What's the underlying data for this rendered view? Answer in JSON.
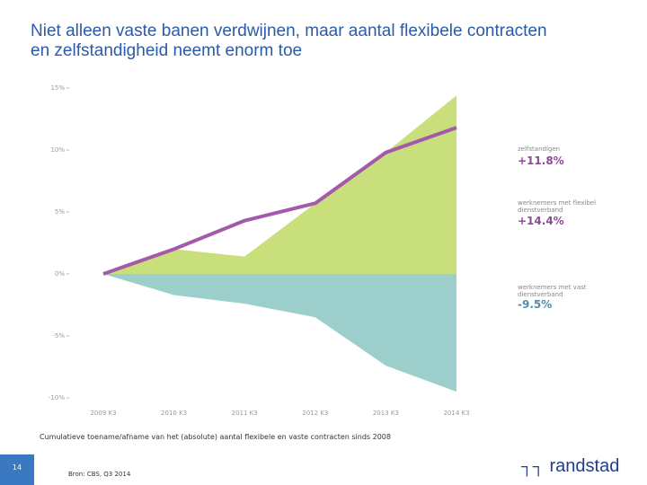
{
  "title": "Niet alleen vaste banen verdwijnen, maar aantal flexibele contracten en zelfstandigheid neemt enorm toe",
  "chart_data": {
    "type": "area",
    "categories": [
      "2009 K3",
      "2010 K3",
      "2011 K3",
      "2012 K3",
      "2013 K3",
      "2014 K3"
    ],
    "ylim": [
      -10,
      15
    ],
    "yticks": [
      {
        "value": -10,
        "label": "-10%"
      },
      {
        "value": -5,
        "label": "-5%"
      },
      {
        "value": 0,
        "label": "0%"
      },
      {
        "value": 5,
        "label": "5%"
      },
      {
        "value": 10,
        "label": "10%"
      },
      {
        "value": 15,
        "label": "15%"
      }
    ],
    "series": [
      {
        "name": "werknemers met flexibel dienstverband",
        "color": "#c8df7c",
        "kind": "area",
        "values": [
          0,
          2.0,
          1.4,
          5.7,
          9.8,
          14.4
        ],
        "value_labels": [
          null,
          null,
          null,
          null,
          null,
          "+14.4%"
        ]
      },
      {
        "name": "werknemers met vast dienstverband",
        "color": "#9ccfcb",
        "kind": "area",
        "values": [
          0,
          -1.7,
          -2.4,
          -3.5,
          -7.4,
          -9.5
        ],
        "value_labels": [
          null,
          null,
          null,
          null,
          null,
          "-9.5%"
        ]
      },
      {
        "name": "zelfstandigen",
        "color": "#a35aaa",
        "kind": "line",
        "values": [
          0,
          2.0,
          4.3,
          5.7,
          9.8,
          11.8
        ],
        "value_labels": [
          null,
          null,
          null,
          null,
          null,
          "+11.8%"
        ]
      }
    ],
    "caption": "Cumulatieve toename/afname van het (absolute) aantal flexibele en vaste contracten sinds 2008"
  },
  "footer": {
    "page": "14",
    "source": "Bron: CBS, Q3 2014",
    "logo": "randstad"
  }
}
